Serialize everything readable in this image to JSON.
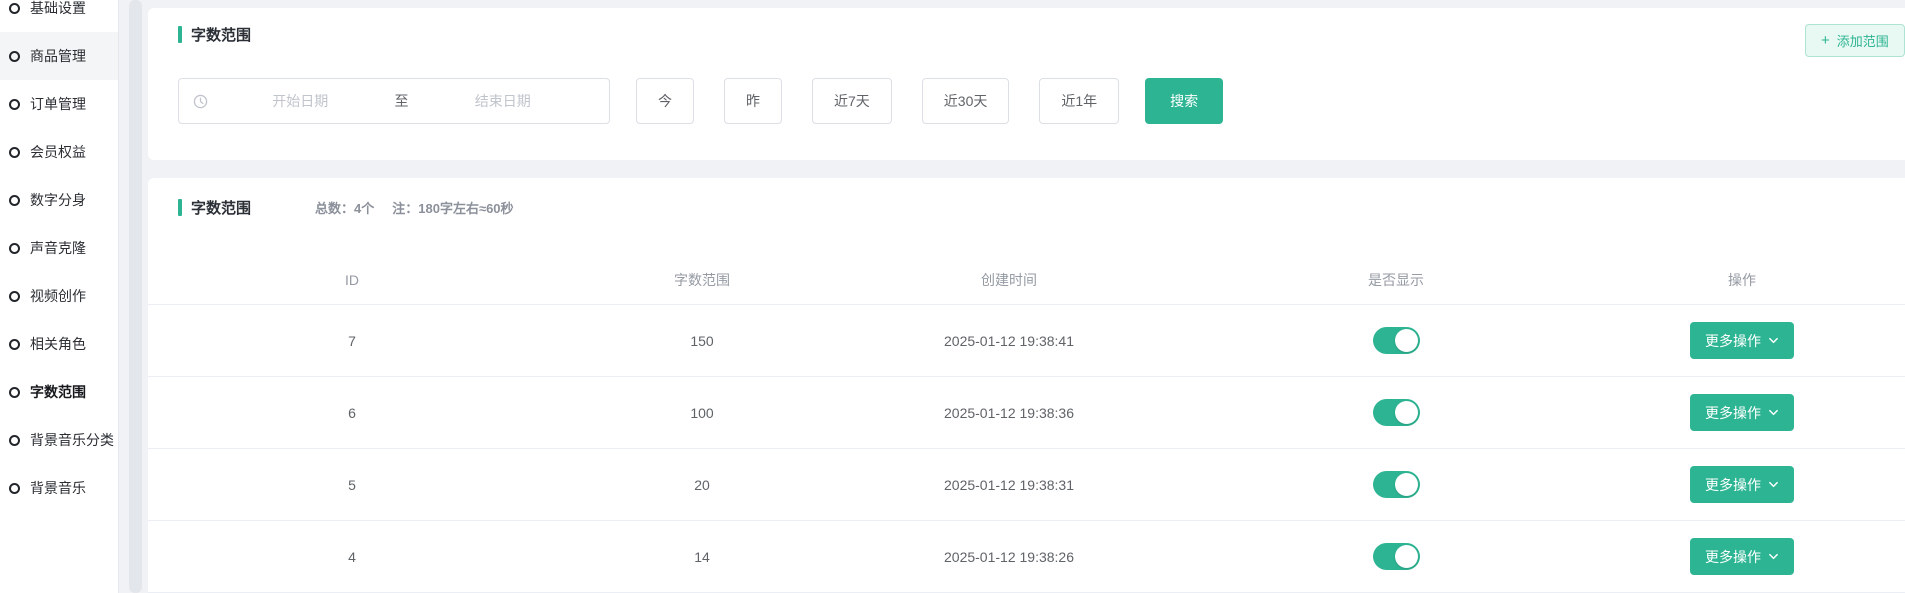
{
  "colors": {
    "accent": "#2db593",
    "accent_light": "#e8f8f2",
    "accent_border": "#aee3d3",
    "page_bg": "#f0f2f5"
  },
  "sidebar": {
    "items": [
      {
        "label": "基础设置",
        "state": "normal"
      },
      {
        "label": "商品管理",
        "state": "hovered"
      },
      {
        "label": "订单管理",
        "state": "normal"
      },
      {
        "label": "会员权益",
        "state": "normal"
      },
      {
        "label": "数字分身",
        "state": "normal"
      },
      {
        "label": "声音克隆",
        "state": "normal"
      },
      {
        "label": "视频创作",
        "state": "normal"
      },
      {
        "label": "相关角色",
        "state": "normal"
      },
      {
        "label": "字数范围",
        "state": "active"
      },
      {
        "label": "背景音乐分类",
        "state": "normal"
      },
      {
        "label": "背景音乐",
        "state": "normal"
      }
    ]
  },
  "filter_card": {
    "title": "字数范围",
    "add_range_button": {
      "icon": "plus",
      "label": "添加范围"
    },
    "date_picker": {
      "icon": "clock",
      "start_placeholder": "开始日期",
      "separator": "至",
      "end_placeholder": "结束日期"
    },
    "quick_ranges": [
      "今",
      "昨",
      "近7天",
      "近30天",
      "近1年"
    ],
    "search_button": "搜索"
  },
  "list_card": {
    "title": "字数范围",
    "total_text": "总数：4个",
    "note_text": "注：180字左右≈60秒",
    "table": {
      "columns": [
        "ID",
        "字数范围",
        "创建时间",
        "是否显示",
        "操作"
      ],
      "more_action_label": "更多操作",
      "rows": [
        {
          "id": "7",
          "word_range": "150",
          "created_at": "2025-01-12 19:38:41",
          "visible": true
        },
        {
          "id": "6",
          "word_range": "100",
          "created_at": "2025-01-12 19:38:36",
          "visible": true
        },
        {
          "id": "5",
          "word_range": "20",
          "created_at": "2025-01-12 19:38:31",
          "visible": true
        },
        {
          "id": "4",
          "word_range": "14",
          "created_at": "2025-01-12 19:38:26",
          "visible": true
        }
      ]
    }
  }
}
